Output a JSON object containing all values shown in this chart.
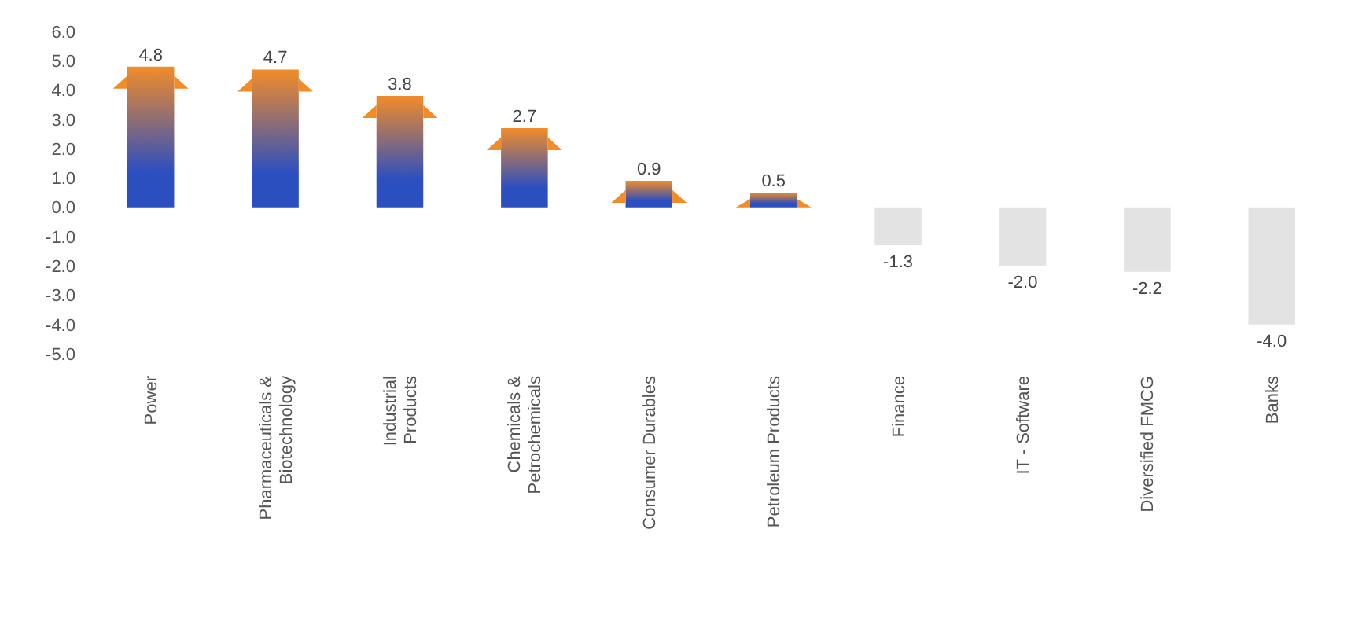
{
  "chart_data": {
    "type": "bar",
    "categories": [
      "Power",
      "Pharmaceuticals & Biotechnology",
      "Industrial Products",
      "Chemicals & Petrochemicals",
      "Consumer Durables",
      "Petroleum Products",
      "Finance",
      "IT - Software",
      "Diversified FMCG",
      "Banks"
    ],
    "values": [
      4.8,
      4.7,
      3.8,
      2.7,
      0.9,
      0.5,
      -1.3,
      -2.0,
      -2.2,
      -4.0
    ],
    "colors": [
      "#f28c28",
      "#f28c28",
      "#f28c28",
      "#f28c28",
      "#f28c28",
      "#f28c28",
      "#e3e3e3",
      "#e3e3e3",
      "#e3e3e3",
      "#e3e3e3"
    ],
    "value_labels": [
      "4.8",
      "4.7",
      "3.8",
      "2.7",
      "0.9",
      "0.5",
      "-1.3",
      "-2.0",
      "-2.2",
      "-4.0"
    ],
    "ylim": [
      -5,
      6
    ],
    "yticks": [
      {
        "value": 6,
        "label": "6.0"
      },
      {
        "value": 5,
        "label": "5.0"
      },
      {
        "value": 4,
        "label": "4.0"
      },
      {
        "value": 3,
        "label": "3.0"
      },
      {
        "value": 2,
        "label": "2.0"
      },
      {
        "value": 1,
        "label": "1.0"
      },
      {
        "value": 0,
        "label": "0.0"
      },
      {
        "value": -1,
        "label": "-1.0"
      },
      {
        "value": -2,
        "label": "-2.0"
      },
      {
        "value": -3,
        "label": "-3.0"
      },
      {
        "value": -4,
        "label": "-4.0"
      },
      {
        "value": -5,
        "label": "-5.0"
      }
    ],
    "grid": false,
    "legend": false
  }
}
